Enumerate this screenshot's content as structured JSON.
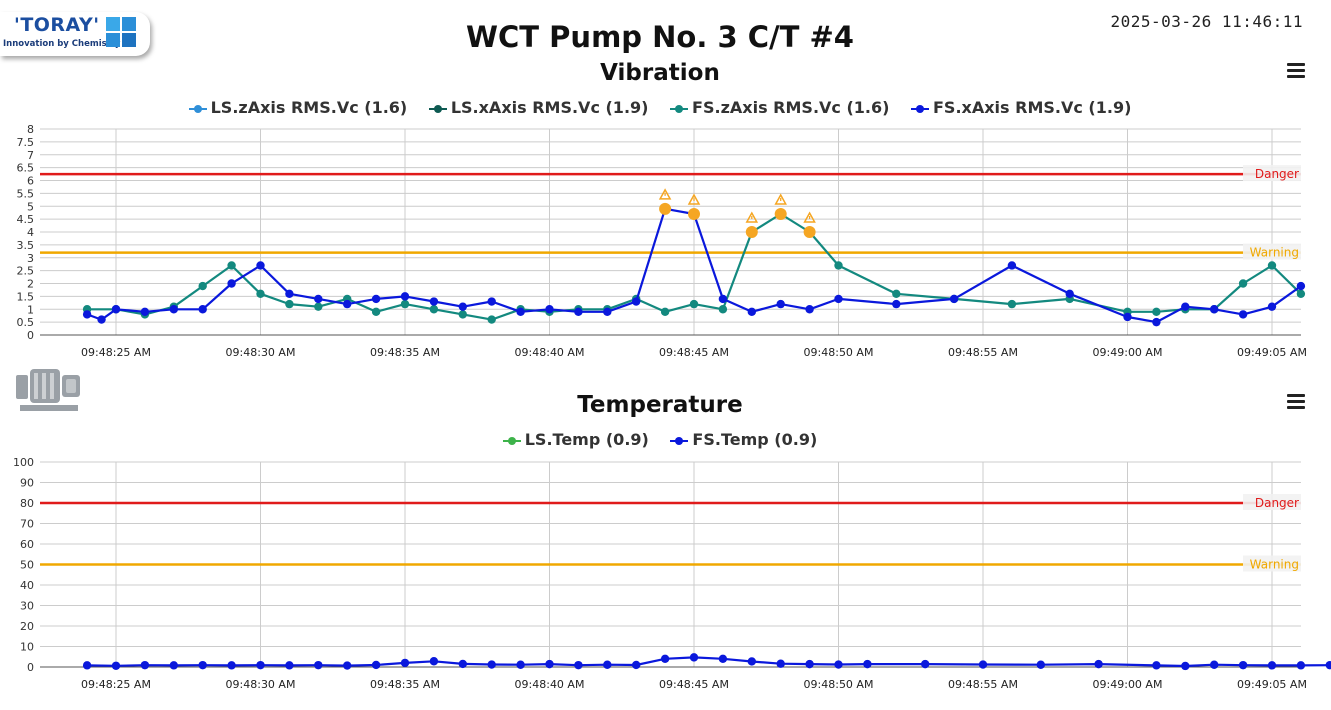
{
  "header": {
    "logo_brand": "'TORAY'",
    "logo_tagline": "Innovation by Chemistry",
    "title": "WCT Pump No. 3 C/T #4",
    "datetime": "2025-03-26 11:46:11"
  },
  "colors": {
    "danger": "#e01b1b",
    "warning": "#f0a800",
    "alert_marker": "#f5a623",
    "grid": "#cccccc"
  },
  "icons": [
    "toray-logo",
    "windows-squares-icon",
    "menu-icon",
    "pump-motor-icon",
    "warning-triangle-icon"
  ],
  "chart_data": [
    {
      "type": "line",
      "title": "Vibration",
      "x_labels": [
        "09:48:25 AM",
        "09:48:30 AM",
        "09:48:35 AM",
        "09:48:40 AM",
        "09:48:45 AM",
        "09:48:50 AM",
        "09:48:55 AM",
        "09:49:00 AM",
        "09:49:05 AM"
      ],
      "x_range_seconds": [
        -2.0,
        5.0
      ],
      "ylim": [
        0,
        8
      ],
      "y_ticks": [
        "0",
        "0.5",
        "1",
        "1.5",
        "2",
        "2.5",
        "3",
        "3.5",
        "4",
        "4.5",
        "5",
        "5.5",
        "6",
        "6.5",
        "7",
        "7.5",
        "8"
      ],
      "thresholds": [
        {
          "label": "Danger",
          "value": 6.25,
          "color": "#e01b1b"
        },
        {
          "label": "Warning",
          "value": 3.2,
          "color": "#f0a800"
        }
      ],
      "series": [
        {
          "name": "LS.zAxis RMS.Vc (1.6)",
          "color": "#2f8fd8",
          "points": []
        },
        {
          "name": "LS.xAxis RMS.Vc (1.9)",
          "color": "#0e5a52",
          "points": []
        },
        {
          "name": "FS.zAxis RMS.Vc (1.6)",
          "color": "#13897f",
          "points": [
            [
              -1,
              1.0
            ],
            [
              0,
              1.0
            ],
            [
              1,
              0.8
            ],
            [
              2,
              1.1
            ],
            [
              3,
              1.9
            ],
            [
              4,
              2.7
            ],
            [
              5,
              1.6
            ],
            [
              6,
              1.2
            ],
            [
              7,
              1.1
            ],
            [
              8,
              1.4
            ],
            [
              9,
              0.9
            ],
            [
              10,
              1.2
            ],
            [
              11,
              1.0
            ],
            [
              12,
              0.8
            ],
            [
              13,
              0.6
            ],
            [
              14,
              1.0
            ],
            [
              15,
              0.9
            ],
            [
              16,
              1.0
            ],
            [
              17,
              1.0
            ],
            [
              18,
              1.4
            ],
            [
              19,
              0.9
            ],
            [
              20,
              1.2
            ],
            [
              21,
              1.0
            ],
            [
              22,
              4.0
            ],
            [
              23,
              4.7
            ],
            [
              24,
              4.0
            ],
            [
              25,
              2.7
            ],
            [
              27,
              1.6
            ],
            [
              29,
              1.4
            ],
            [
              31,
              1.2
            ],
            [
              33,
              1.4
            ],
            [
              35,
              0.9
            ],
            [
              36,
              0.9
            ],
            [
              37,
              1.0
            ],
            [
              38,
              1.0
            ],
            [
              39,
              2.0
            ],
            [
              40,
              2.7
            ],
            [
              41,
              1.6
            ]
          ]
        },
        {
          "name": "FS.xAxis RMS.Vc (1.9)",
          "color": "#0a18dc",
          "points": [
            [
              -1,
              0.8
            ],
            [
              -0.5,
              0.6
            ],
            [
              0,
              1.0
            ],
            [
              1,
              0.9
            ],
            [
              2,
              1.0
            ],
            [
              3,
              1.0
            ],
            [
              4,
              2.0
            ],
            [
              5,
              2.7
            ],
            [
              6,
              1.6
            ],
            [
              7,
              1.4
            ],
            [
              8,
              1.2
            ],
            [
              9,
              1.4
            ],
            [
              10,
              1.5
            ],
            [
              11,
              1.3
            ],
            [
              12,
              1.1
            ],
            [
              13,
              1.3
            ],
            [
              14,
              0.9
            ],
            [
              15,
              1.0
            ],
            [
              16,
              0.9
            ],
            [
              17,
              0.9
            ],
            [
              18,
              1.3
            ],
            [
              19,
              4.9
            ],
            [
              20,
              4.7
            ],
            [
              21,
              1.4
            ],
            [
              22,
              0.9
            ],
            [
              23,
              1.2
            ],
            [
              24,
              1.0
            ],
            [
              25,
              1.4
            ],
            [
              27,
              1.2
            ],
            [
              29,
              1.4
            ],
            [
              31,
              2.7
            ],
            [
              33,
              1.6
            ],
            [
              35,
              0.7
            ],
            [
              36,
              0.5
            ],
            [
              37,
              1.1
            ],
            [
              38,
              1.0
            ],
            [
              39,
              0.8
            ],
            [
              40,
              1.1
            ],
            [
              41,
              1.9
            ]
          ]
        }
      ],
      "alert_markers": [
        [
          19,
          4.9
        ],
        [
          20,
          4.7
        ],
        [
          22,
          4.0
        ],
        [
          23,
          4.7
        ],
        [
          24,
          4.0
        ]
      ]
    },
    {
      "type": "line",
      "title": "Temperature",
      "x_labels": [
        "09:48:25 AM",
        "09:48:30 AM",
        "09:48:35 AM",
        "09:48:40 AM",
        "09:48:45 AM",
        "09:48:50 AM",
        "09:48:55 AM",
        "09:49:00 AM",
        "09:49:05 AM"
      ],
      "x_range_seconds": [
        -2.0,
        5.0
      ],
      "ylim": [
        0,
        100
      ],
      "y_ticks": [
        "0",
        "10",
        "20",
        "30",
        "40",
        "50",
        "60",
        "70",
        "80",
        "90",
        "100"
      ],
      "thresholds": [
        {
          "label": "Danger",
          "value": 80,
          "color": "#e01b1b"
        },
        {
          "label": "Warning",
          "value": 50,
          "color": "#f0a800"
        }
      ],
      "series": [
        {
          "name": "LS.Temp (0.9)",
          "color": "#3db34a",
          "points": []
        },
        {
          "name": "FS.Temp (0.9)",
          "color": "#0a18dc",
          "points": [
            [
              -1,
              0.8
            ],
            [
              0,
              0.6
            ],
            [
              1,
              0.9
            ],
            [
              2,
              0.8
            ],
            [
              3,
              0.9
            ],
            [
              4,
              0.8
            ],
            [
              5,
              0.9
            ],
            [
              6,
              0.8
            ],
            [
              7,
              0.9
            ],
            [
              8,
              0.7
            ],
            [
              9,
              1.0
            ],
            [
              10,
              2.0
            ],
            [
              11,
              2.8
            ],
            [
              12,
              1.5
            ],
            [
              13,
              1.2
            ],
            [
              14,
              1.1
            ],
            [
              15,
              1.4
            ],
            [
              16,
              0.9
            ],
            [
              17,
              1.1
            ],
            [
              18,
              1.0
            ],
            [
              19,
              4.0
            ],
            [
              20,
              4.7
            ],
            [
              21,
              4.0
            ],
            [
              22,
              2.7
            ],
            [
              23,
              1.6
            ],
            [
              24,
              1.4
            ],
            [
              25,
              1.2
            ],
            [
              26,
              1.4
            ],
            [
              28,
              1.4
            ],
            [
              30,
              1.2
            ],
            [
              32,
              1.1
            ],
            [
              34,
              1.4
            ],
            [
              36,
              0.8
            ],
            [
              37,
              0.5
            ],
            [
              38,
              1.1
            ],
            [
              39,
              0.9
            ],
            [
              40,
              0.8
            ],
            [
              41,
              0.8
            ],
            [
              42,
              0.9
            ]
          ]
        }
      ],
      "alert_markers": []
    }
  ]
}
